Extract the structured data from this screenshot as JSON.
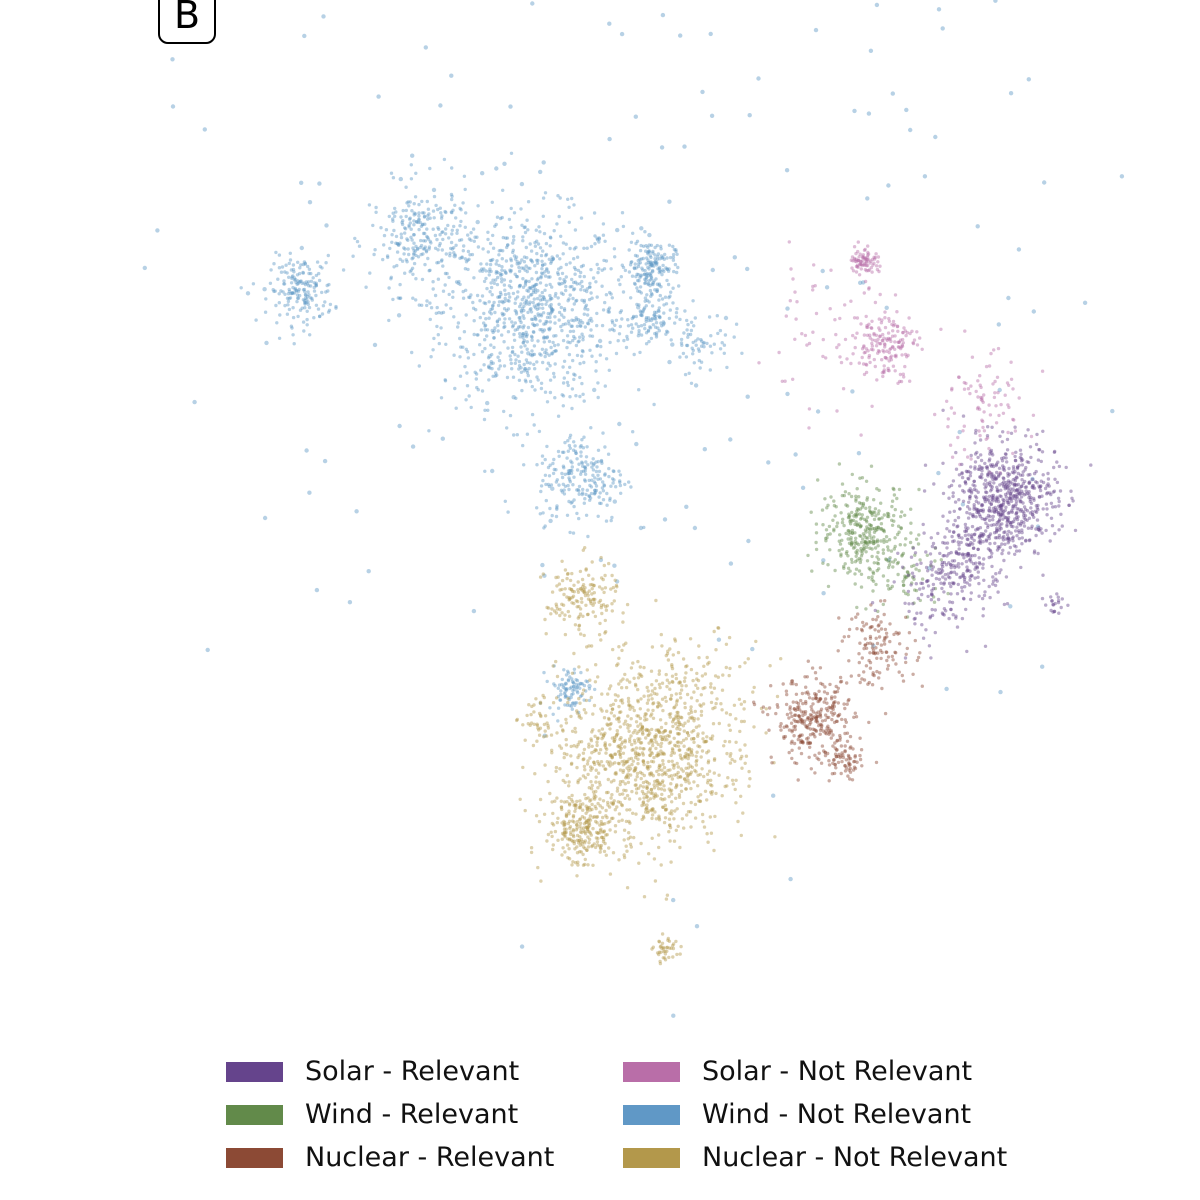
{
  "panel_label": "B",
  "chart_data": {
    "type": "scatter",
    "title": "",
    "xlabel": "",
    "ylabel": "",
    "xlim": [
      0,
      100
    ],
    "ylim": [
      0,
      100
    ],
    "grid": false,
    "legend_position": "bottom",
    "note": "2-D embedding; clusters given as approximate centre (x,y), spread and point count in embedding units",
    "series": [
      {
        "name": "Solar - Relevant",
        "color": "#65448c",
        "clusters": [
          {
            "x": 88,
            "y": 53,
            "sd": 2.6,
            "n": 650
          },
          {
            "x": 84,
            "y": 47,
            "sd": 2.2,
            "n": 200
          },
          {
            "x": 81,
            "y": 44,
            "sd": 2.2,
            "n": 90
          },
          {
            "x": 93,
            "y": 43,
            "sd": 0.5,
            "n": 20
          }
        ]
      },
      {
        "name": "Wind - Relevant",
        "color": "#628a4a",
        "clusters": [
          {
            "x": 74,
            "y": 50,
            "sd": 2.2,
            "n": 300
          },
          {
            "x": 78,
            "y": 46,
            "sd": 2.0,
            "n": 80
          }
        ]
      },
      {
        "name": "Nuclear - Relevant",
        "color": "#8c4a35",
        "clusters": [
          {
            "x": 69,
            "y": 32,
            "sd": 2.0,
            "n": 300
          },
          {
            "x": 72,
            "y": 28,
            "sd": 0.9,
            "n": 60
          },
          {
            "x": 75.5,
            "y": 39,
            "sd": 1.8,
            "n": 120
          }
        ]
      },
      {
        "name": "Solar - Not Relevant",
        "color": "#b96ea8",
        "clusters": [
          {
            "x": 74,
            "y": 75.5,
            "sd": 0.7,
            "n": 80
          },
          {
            "x": 76,
            "y": 67.5,
            "sd": 1.6,
            "n": 160
          },
          {
            "x": 85.5,
            "y": 61.5,
            "sd": 2.6,
            "n": 90
          },
          {
            "x": 70,
            "y": 68,
            "sd": 3.5,
            "n": 60
          }
        ]
      },
      {
        "name": "Wind - Not Relevant",
        "color": "#6098c6",
        "clusters": [
          {
            "x": 40.8,
            "y": 70.8,
            "sd": 4.5,
            "n": 900
          },
          {
            "x": 17.9,
            "y": 72.6,
            "sd": 1.6,
            "n": 180
          },
          {
            "x": 29.9,
            "y": 77.4,
            "sd": 2.6,
            "n": 260
          },
          {
            "x": 52.7,
            "y": 75,
            "sd": 1.2,
            "n": 160
          },
          {
            "x": 52.5,
            "y": 70,
            "sd": 1.5,
            "n": 120
          },
          {
            "x": 45.8,
            "y": 55,
            "sd": 2.2,
            "n": 220
          },
          {
            "x": 57.7,
            "y": 67.9,
            "sd": 1.5,
            "n": 60
          },
          {
            "x": 44.5,
            "y": 35,
            "sd": 1.0,
            "n": 90
          },
          {
            "x": 50,
            "y": 80,
            "sd": 30,
            "n": 260
          }
        ]
      },
      {
        "name": "Nuclear - Not Relevant",
        "color": "#b3984b",
        "clusters": [
          {
            "x": 51.7,
            "y": 28.3,
            "sd": 4.2,
            "n": 900
          },
          {
            "x": 45.8,
            "y": 21.7,
            "sd": 1.8,
            "n": 220
          },
          {
            "x": 45.8,
            "y": 43.4,
            "sd": 1.8,
            "n": 160
          },
          {
            "x": 54.2,
            "y": 10.4,
            "sd": 0.6,
            "n": 40
          },
          {
            "x": 57,
            "y": 33,
            "sd": 3.5,
            "n": 200
          },
          {
            "x": 42,
            "y": 32,
            "sd": 1.2,
            "n": 40
          }
        ]
      }
    ]
  }
}
